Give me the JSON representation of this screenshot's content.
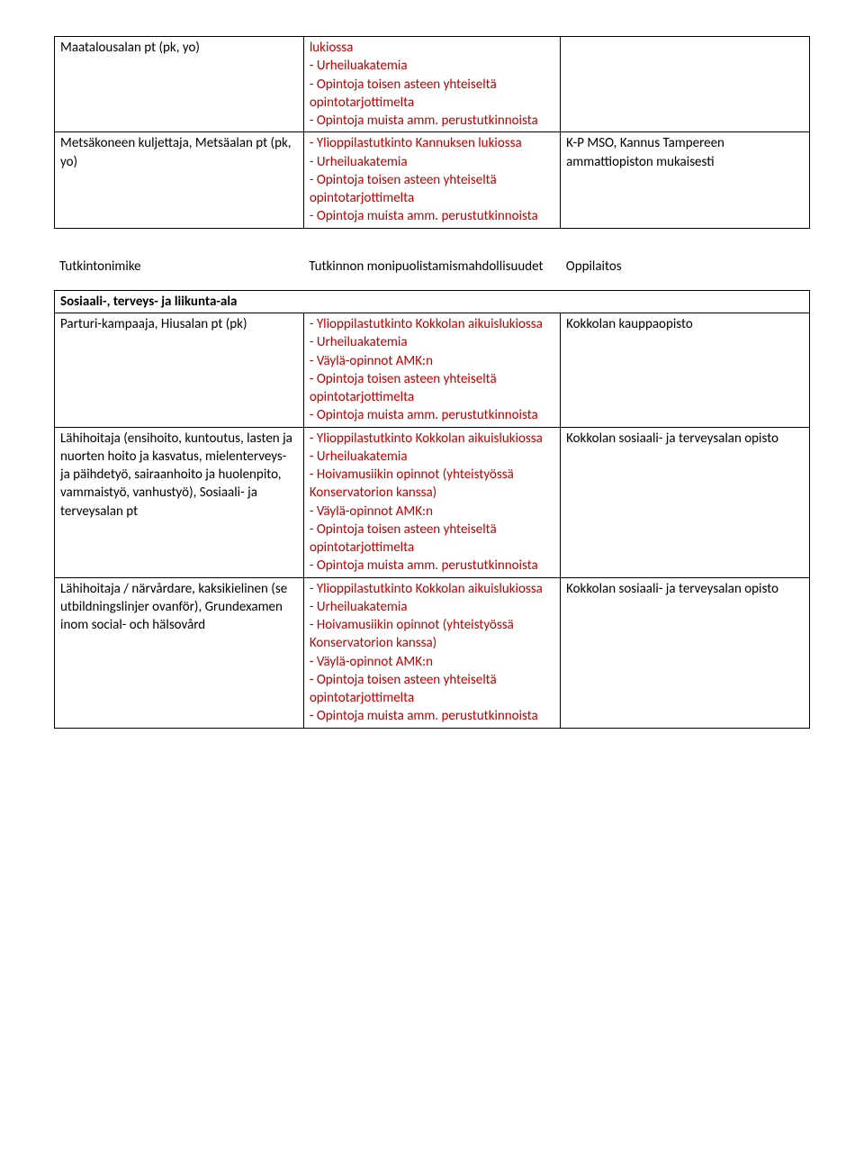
{
  "table1": {
    "rows": [
      {
        "c1": "Maatalousalan pt (pk, yo)",
        "c2": "lukiossa\n- Urheiluakatemia\n- Opintoja toisen asteen yhteiseltä opintotarjottimelta\n- Opintoja muista amm. perustutkinnoista",
        "c3": ""
      },
      {
        "c1": "Metsäkoneen kuljettaja, Metsäalan pt (pk, yo)",
        "c2": "- Ylioppilastutkinto Kannuksen lukiossa\n- Urheiluakatemia\n- Opintoja toisen asteen yhteiseltä opintotarjottimelta\n- Opintoja muista amm. perustutkinnoista",
        "c3": "K-P MSO, Kannus Tampereen ammattiopiston mukaisesti"
      }
    ]
  },
  "mid": {
    "c1": "Tutkintonimike",
    "c2": "Tutkinnon monipuolistamismahdollisuudet",
    "c3": "Oppilaitos"
  },
  "table2": {
    "section": "Sosiaali-, terveys- ja liikunta-ala",
    "rows": [
      {
        "c1": "Parturi-kampaaja, Hiusalan pt (pk)",
        "c2": "- Ylioppilastutkinto Kokkolan aikuislukiossa\n- Urheiluakatemia\n- Väylä-opinnot AMK:n\n- Opintoja toisen asteen yhteiseltä opintotarjottimelta\n- Opintoja muista amm. perustutkinnoista",
        "c3": "Kokkolan kauppaopisto"
      },
      {
        "c1": "Lähihoitaja (ensihoito, kuntoutus, lasten ja nuorten hoito ja kasvatus, mielenterveys- ja päihdetyö, sairaanhoito ja huolenpito, vammaistyö, vanhustyö), Sosiaali- ja terveysalan pt",
        "c2": "- Ylioppilastutkinto Kokkolan aikuislukiossa\n- Urheiluakatemia\n- Hoivamusiikin opinnot (yhteistyössä Konservatorion kanssa)\n- Väylä-opinnot AMK:n\n- Opintoja toisen asteen yhteiseltä opintotarjottimelta\n- Opintoja muista amm. perustutkinnoista",
        "c3": "Kokkolan sosiaali- ja terveysalan opisto"
      },
      {
        "c1": "Lähihoitaja / närvårdare, kaksikielinen (se utbildningslinjer ovanför), Grundexamen inom social- och hälsovård",
        "c2": "- Ylioppilastutkinto Kokkolan aikuislukiossa\n- Urheiluakatemia\n- Hoivamusiikin opinnot (yhteistyössä Konservatorion kanssa)\n- Väylä-opinnot AMK:n\n- Opintoja toisen asteen yhteiseltä opintotarjottimelta\n- Opintoja muista amm. perustutkinnoista",
        "c3": "Kokkolan sosiaali- ja terveysalan opisto"
      }
    ]
  }
}
